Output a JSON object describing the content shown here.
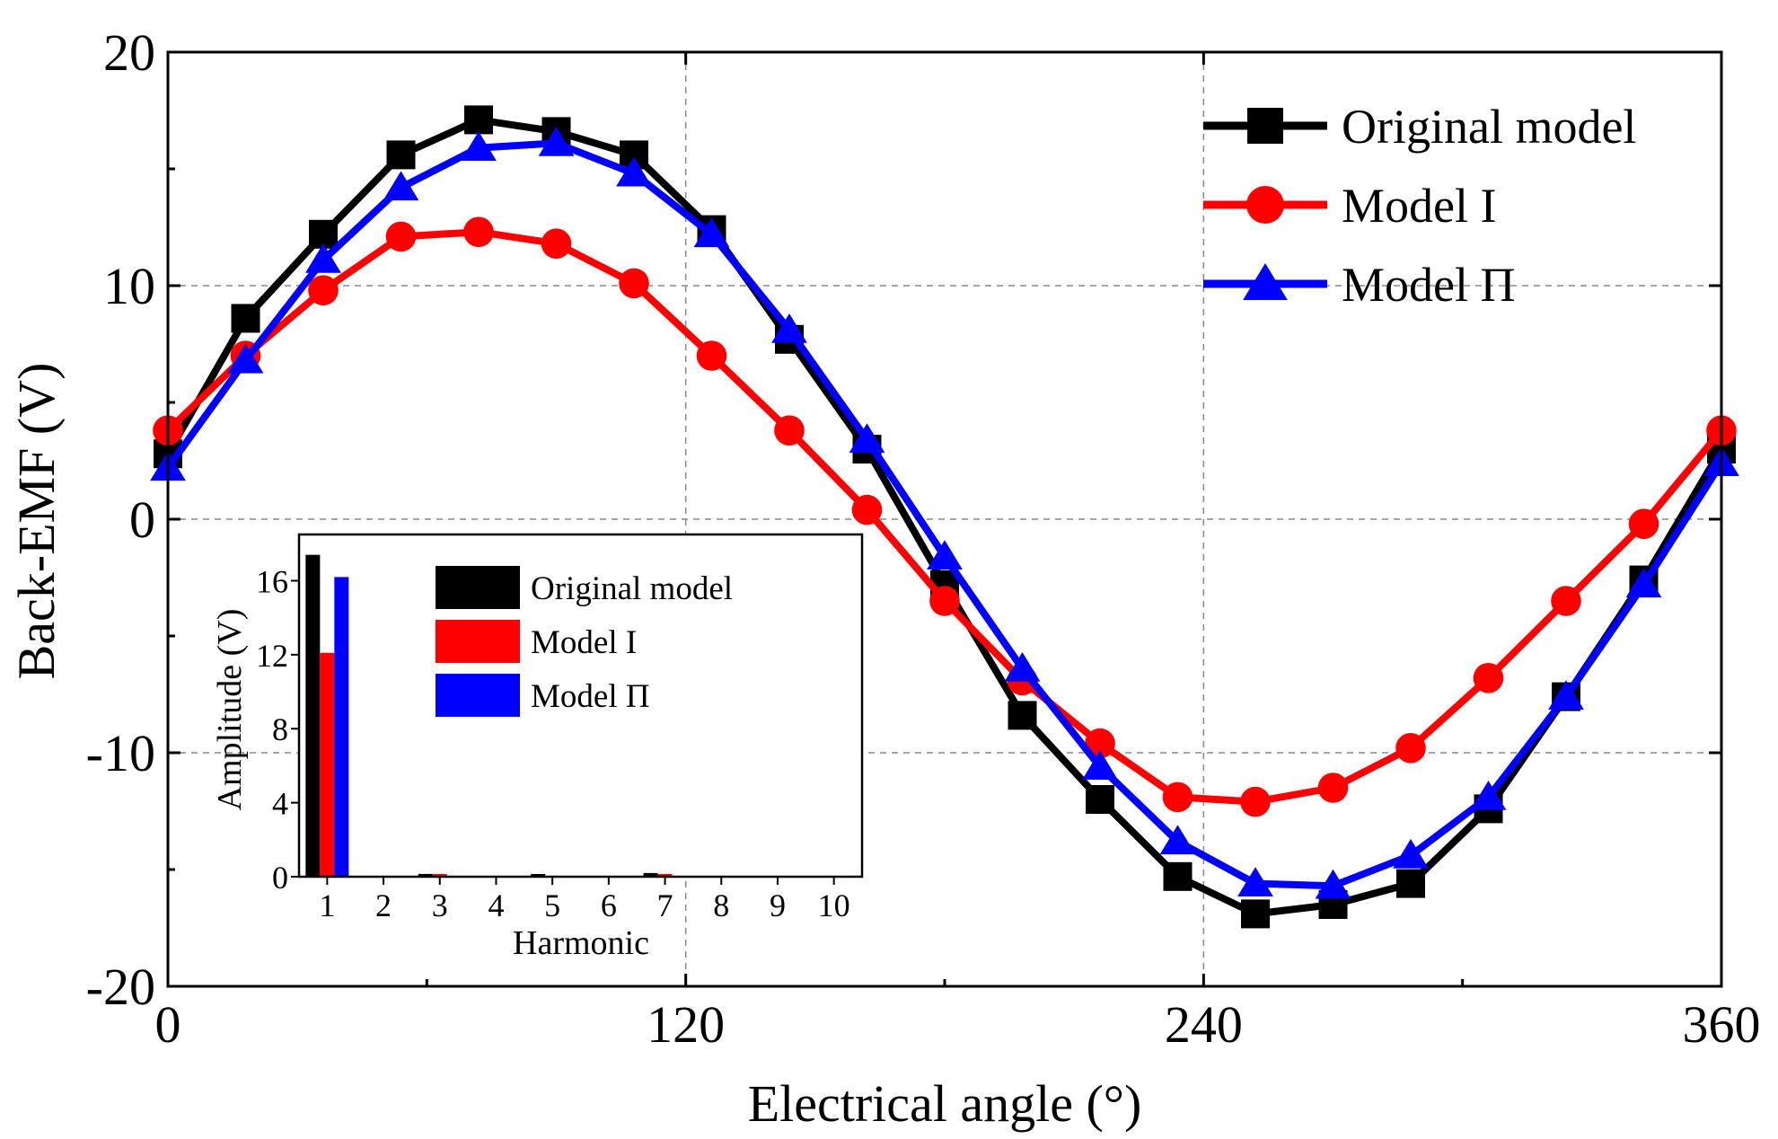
{
  "chart_data": [
    {
      "type": "line",
      "title": "",
      "xlabel": "Electrical angle (°)",
      "ylabel": "Back-EMF (V)",
      "xlim": [
        0,
        360
      ],
      "ylim": [
        -20,
        20
      ],
      "xticks": [
        0,
        120,
        240,
        360
      ],
      "yticks": [
        20,
        10,
        0,
        -10,
        -20
      ],
      "x_tick_labels": [
        "0",
        "120",
        "240",
        "360"
      ],
      "y_tick_labels": [
        "20",
        "10",
        "0",
        "-10",
        "-20"
      ],
      "grid": true,
      "legend_position": "top-right",
      "x": [
        0,
        18,
        36,
        54,
        72,
        90,
        108,
        126,
        144,
        162,
        180,
        198,
        216,
        234,
        252,
        270,
        288,
        306,
        324,
        342,
        360
      ],
      "series": [
        {
          "name": "Original model",
          "color": "#000000",
          "marker": "square",
          "values": [
            2.8,
            8.6,
            12.2,
            15.6,
            17.1,
            16.6,
            15.6,
            12.4,
            7.7,
            3.0,
            -2.8,
            -8.4,
            -12.0,
            -15.3,
            -16.9,
            -16.5,
            -15.6,
            -12.4,
            -7.6,
            -2.6,
            3.0
          ]
        },
        {
          "name": "Model I",
          "color": "#ff0000",
          "marker": "circle",
          "values": [
            3.8,
            7.0,
            9.8,
            12.1,
            12.3,
            11.8,
            10.1,
            7.0,
            3.8,
            0.4,
            -3.5,
            -6.9,
            -9.6,
            -11.9,
            -12.1,
            -11.5,
            -9.8,
            -6.8,
            -3.5,
            -0.2,
            3.8
          ]
        },
        {
          "name": "Model Π",
          "color": "#0000ff",
          "marker": "triangle",
          "values": [
            2.2,
            6.8,
            11.1,
            14.2,
            15.9,
            16.1,
            14.8,
            12.2,
            8.1,
            3.4,
            -1.6,
            -6.4,
            -10.6,
            -13.8,
            -15.6,
            -15.7,
            -14.4,
            -11.9,
            -7.6,
            -2.8,
            2.4
          ]
        }
      ]
    },
    {
      "type": "bar",
      "title": "",
      "xlabel": "Harmonic",
      "ylabel": "Amplitude (V)",
      "xlim": [
        0.5,
        10.5
      ],
      "ylim": [
        0,
        18.5
      ],
      "yticks": [
        0,
        4,
        8,
        12,
        16
      ],
      "y_tick_labels": [
        "0",
        "4",
        "8",
        "12",
        "16"
      ],
      "categories": [
        "1",
        "2",
        "3",
        "4",
        "5",
        "6",
        "7",
        "8",
        "9",
        "10"
      ],
      "grid": false,
      "legend_position": "top-right",
      "series": [
        {
          "name": "Original model",
          "color": "#000000",
          "values": [
            17.4,
            0.0,
            0.15,
            0.0,
            0.05,
            0.0,
            0.2,
            0.0,
            0.0,
            0.0
          ]
        },
        {
          "name": "Model I",
          "color": "#ff0000",
          "values": [
            12.1,
            0.0,
            0.1,
            0.0,
            0.0,
            0.0,
            0.1,
            0.0,
            0.0,
            0.0
          ]
        },
        {
          "name": "Model Π",
          "color": "#0000ff",
          "values": [
            16.2,
            0.0,
            0.0,
            0.0,
            0.0,
            0.0,
            0.0,
            0.0,
            0.0,
            0.0
          ]
        }
      ]
    }
  ]
}
